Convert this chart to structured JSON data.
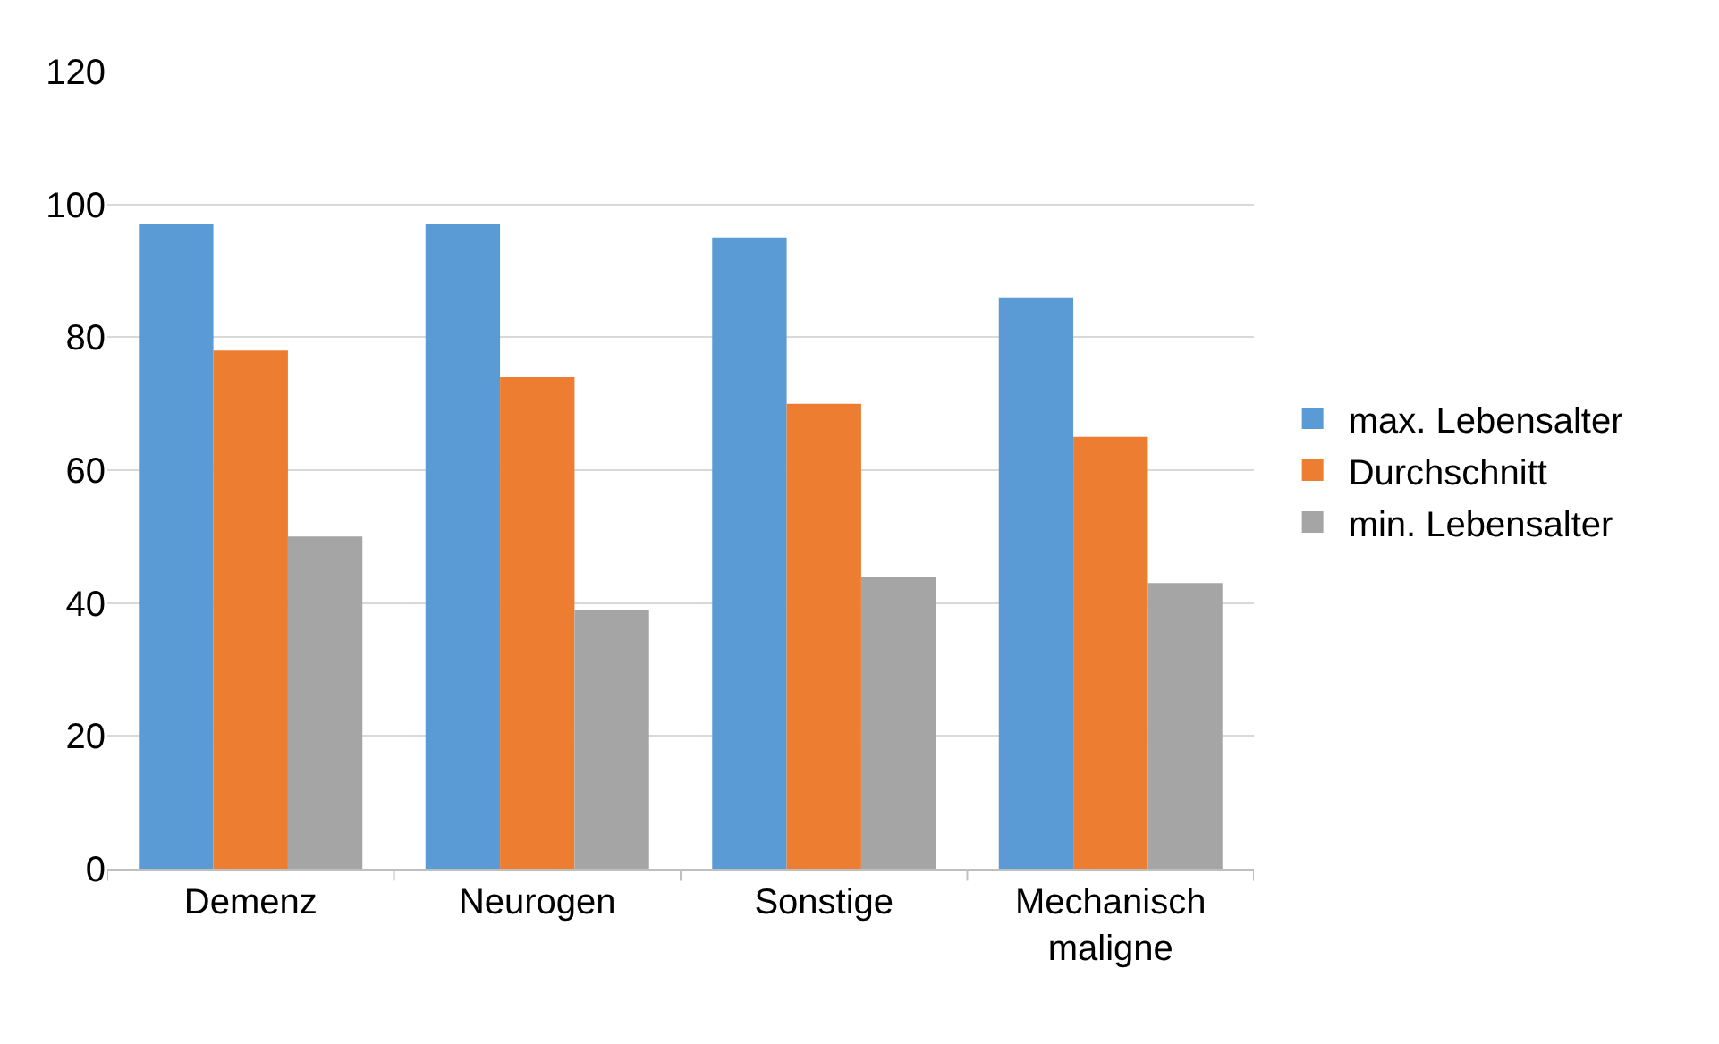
{
  "chart_data": {
    "type": "bar",
    "categories": [
      "Demenz",
      "Neurogen",
      "Sonstige",
      "Mechanisch maligne"
    ],
    "series": [
      {
        "name": "max. Lebensalter",
        "color": "#5b9bd5",
        "values": [
          97,
          97,
          95,
          86
        ]
      },
      {
        "name": "Durchschnitt",
        "color": "#ed7d31",
        "values": [
          78,
          74,
          70,
          65
        ]
      },
      {
        "name": "min. Lebensalter",
        "color": "#a5a5a5",
        "values": [
          50,
          39,
          44,
          43
        ]
      }
    ],
    "ylim": [
      0,
      120
    ],
    "yticks": [
      0,
      20,
      40,
      60,
      80,
      100,
      120
    ],
    "grid": "y",
    "legend": "right"
  }
}
